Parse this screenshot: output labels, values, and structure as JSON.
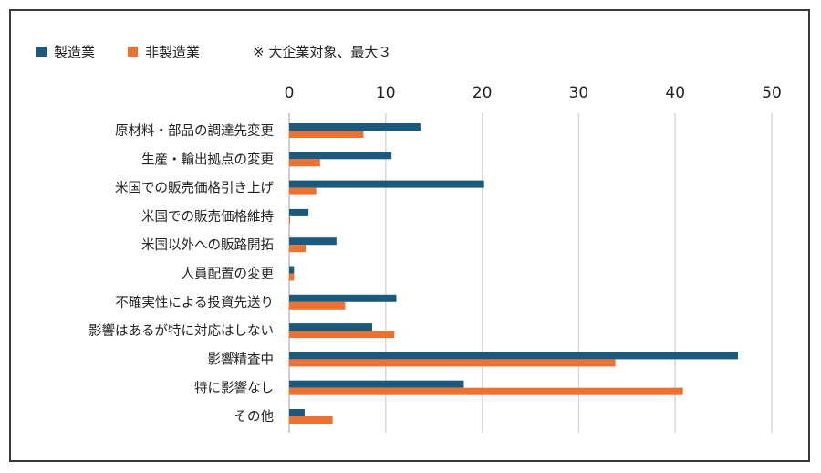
{
  "chart_data": {
    "type": "bar",
    "orientation": "horizontal",
    "title": "",
    "note": "※ 大企業対象、最大３",
    "categories": [
      "原材料・部品の調達先変更",
      "生産・輸出拠点の変更",
      "米国での販売価格引き上げ",
      "米国での販売価格維持",
      "米国以外への販路開拓",
      "人員配置の変更",
      "不確実性による投資先送り",
      "影響はあるが特に対応はしない",
      "影響精査中",
      "特に影響なし",
      "その他"
    ],
    "series": [
      {
        "name": "製造業",
        "color": "#1b5a7c",
        "values": [
          13.6,
          10.6,
          20.2,
          2.0,
          4.9,
          0.5,
          11.1,
          8.6,
          46.5,
          18.1,
          1.6
        ]
      },
      {
        "name": "非製造業",
        "color": "#ed7232",
        "values": [
          7.7,
          3.2,
          2.8,
          0.1,
          1.7,
          0.5,
          5.8,
          10.9,
          33.8,
          40.8,
          4.5
        ]
      }
    ],
    "xlim": [
      0,
      50
    ],
    "xticks": [
      0,
      10,
      20,
      30,
      40,
      50
    ],
    "xlabel": "",
    "ylabel": "",
    "grid": true,
    "legend": "top-left",
    "gridline_color": "#d9d9d9",
    "axis_color": "#bfbfbf"
  }
}
